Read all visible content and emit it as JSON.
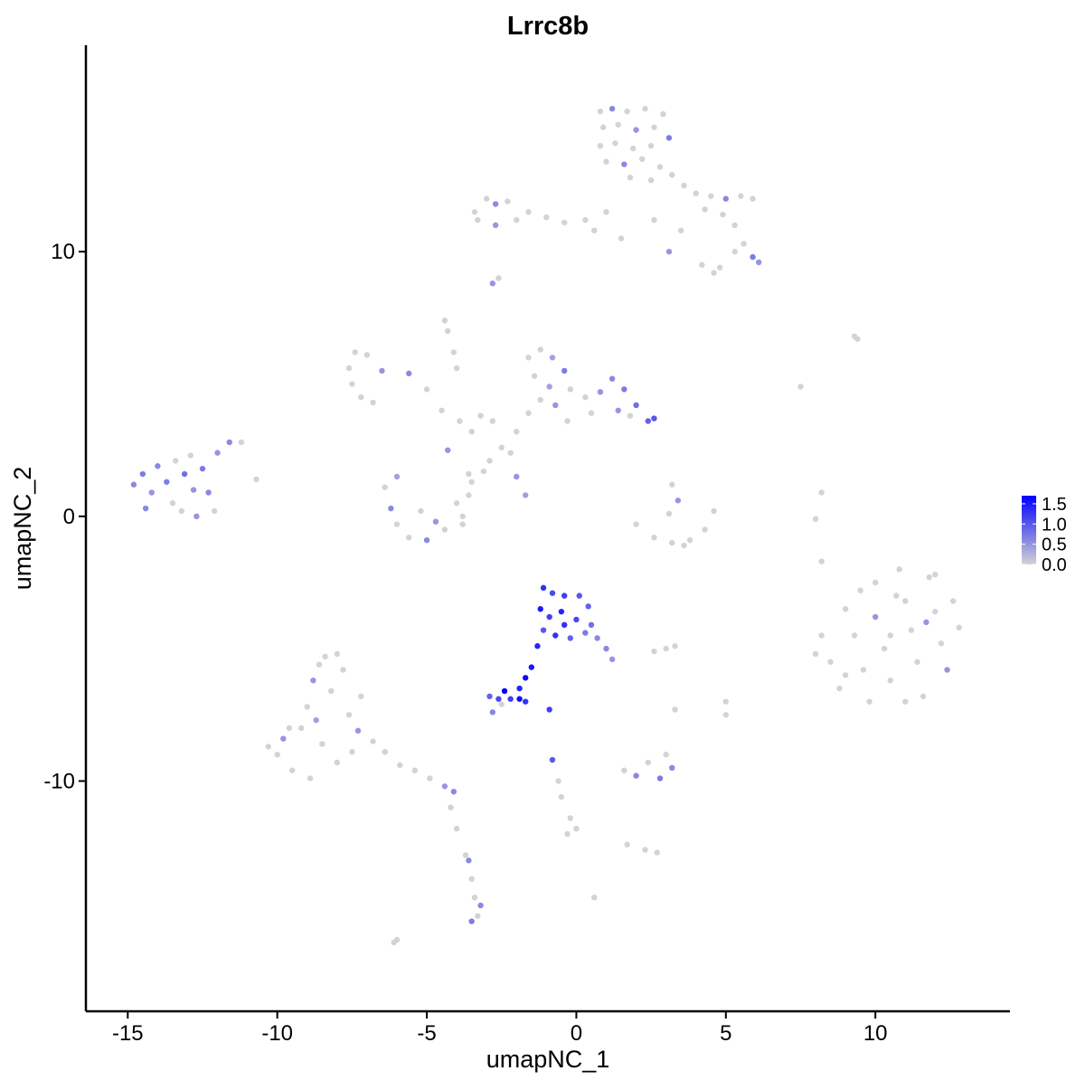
{
  "chart_data": {
    "type": "scatter",
    "title": "Lrrc8b",
    "xlabel": "umapNC_1",
    "ylabel": "umapNC_2",
    "xlim": [
      -16.4,
      14.5
    ],
    "ylim": [
      -18.7,
      17.8
    ],
    "xticks": [
      -15,
      -10,
      -5,
      0,
      5,
      10
    ],
    "yticks": [
      -10,
      0,
      10
    ],
    "grid": false,
    "colors": {
      "low": "#D3D3D3",
      "high": "#0000FF"
    },
    "legend": {
      "position": "right",
      "ticks": [
        "0.0",
        "0.5",
        "1.0",
        "1.5"
      ],
      "range": [
        0,
        1.7
      ]
    },
    "points": [
      [
        0.8,
        15.3,
        0
      ],
      [
        1.2,
        15.4,
        0.6
      ],
      [
        1.7,
        15.3,
        0
      ],
      [
        2.3,
        15.4,
        0
      ],
      [
        2.9,
        15.2,
        0
      ],
      [
        0.9,
        14.7,
        0
      ],
      [
        1.4,
        14.8,
        0
      ],
      [
        2.0,
        14.6,
        0.5
      ],
      [
        2.6,
        14.7,
        0
      ],
      [
        3.1,
        14.3,
        0.7
      ],
      [
        0.8,
        14.0,
        0
      ],
      [
        1.3,
        14.1,
        0
      ],
      [
        1.9,
        13.9,
        0
      ],
      [
        2.5,
        14.0,
        0
      ],
      [
        1.0,
        13.4,
        0
      ],
      [
        1.6,
        13.3,
        0.6
      ],
      [
        2.2,
        13.5,
        0
      ],
      [
        2.8,
        13.2,
        0
      ],
      [
        1.8,
        12.8,
        0
      ],
      [
        2.5,
        12.7,
        0
      ],
      [
        3.2,
        12.9,
        0
      ],
      [
        3.6,
        12.5,
        0
      ],
      [
        4.0,
        12.2,
        0
      ],
      [
        4.5,
        12.1,
        0
      ],
      [
        5.0,
        12.0,
        0.6
      ],
      [
        5.5,
        12.1,
        0
      ],
      [
        5.9,
        12.0,
        0
      ],
      [
        4.3,
        11.6,
        0
      ],
      [
        4.9,
        11.4,
        0
      ],
      [
        5.3,
        11.0,
        0
      ],
      [
        5.6,
        10.3,
        0
      ],
      [
        5.9,
        9.8,
        0.7
      ],
      [
        6.1,
        9.6,
        0.5
      ],
      [
        5.3,
        10.0,
        0
      ],
      [
        4.8,
        9.4,
        0
      ],
      [
        4.2,
        9.5,
        0
      ],
      [
        4.6,
        9.2,
        0
      ],
      [
        3.1,
        10.0,
        0.5
      ],
      [
        3.5,
        10.8,
        0
      ],
      [
        2.6,
        11.2,
        0
      ],
      [
        1.0,
        11.5,
        0
      ],
      [
        0.6,
        10.8,
        0
      ],
      [
        1.5,
        10.5,
        0
      ],
      [
        -3.4,
        11.5,
        0
      ],
      [
        -3.0,
        12.0,
        0
      ],
      [
        -2.7,
        11.8,
        0.6
      ],
      [
        -2.3,
        11.9,
        0
      ],
      [
        -2.0,
        11.2,
        0
      ],
      [
        -1.6,
        11.5,
        0
      ],
      [
        -1.0,
        11.3,
        0
      ],
      [
        -0.4,
        11.1,
        0
      ],
      [
        0.3,
        11.2,
        0
      ],
      [
        -2.7,
        11.0,
        0.5
      ],
      [
        -3.3,
        11.2,
        0
      ],
      [
        -2.8,
        8.8,
        0.5
      ],
      [
        -2.6,
        9.0,
        0
      ],
      [
        -4.4,
        7.4,
        0
      ],
      [
        -4.3,
        7.0,
        0
      ],
      [
        -4.1,
        6.2,
        0
      ],
      [
        -4.0,
        5.6,
        0
      ],
      [
        -7.6,
        5.6,
        0
      ],
      [
        -7.4,
        6.2,
        0
      ],
      [
        -7.0,
        6.1,
        0
      ],
      [
        -7.5,
        5.0,
        0
      ],
      [
        -7.2,
        4.5,
        0
      ],
      [
        -6.8,
        4.3,
        0
      ],
      [
        -6.5,
        5.5,
        0.5
      ],
      [
        -5.6,
        5.4,
        0.6
      ],
      [
        -5.0,
        4.8,
        0
      ],
      [
        -4.5,
        4.0,
        0
      ],
      [
        -3.9,
        3.6,
        0
      ],
      [
        -3.2,
        3.8,
        0
      ],
      [
        -2.8,
        3.6,
        0
      ],
      [
        -2.5,
        2.6,
        0
      ],
      [
        -2.2,
        2.4,
        0
      ],
      [
        -2.9,
        2.1,
        0
      ],
      [
        -4.3,
        2.5,
        0.5
      ],
      [
        -3.6,
        1.6,
        0
      ],
      [
        -3.1,
        1.7,
        0
      ],
      [
        -2.0,
        1.5,
        0.5
      ],
      [
        -1.7,
        0.8,
        0.4
      ],
      [
        -3.5,
        3.2,
        0
      ],
      [
        -1.6,
        6.0,
        0
      ],
      [
        -1.2,
        6.3,
        0
      ],
      [
        -0.8,
        6.0,
        0.4
      ],
      [
        -1.4,
        5.3,
        0
      ],
      [
        -0.9,
        4.9,
        0.4
      ],
      [
        -0.4,
        5.5,
        0.7
      ],
      [
        -0.2,
        4.8,
        0
      ],
      [
        -1.2,
        4.4,
        0
      ],
      [
        -1.6,
        3.9,
        0
      ],
      [
        -0.7,
        4.2,
        0.5
      ],
      [
        -0.3,
        3.6,
        0
      ],
      [
        0.3,
        4.5,
        0
      ],
      [
        0.8,
        4.7,
        0.5
      ],
      [
        1.2,
        5.2,
        0.6
      ],
      [
        1.6,
        4.8,
        0.7
      ],
      [
        2.0,
        4.2,
        0.8
      ],
      [
        2.4,
        3.6,
        0.9
      ],
      [
        2.6,
        3.7,
        1.0
      ],
      [
        1.4,
        4.0,
        0.5
      ],
      [
        1.8,
        3.8,
        0
      ],
      [
        0.5,
        3.9,
        0
      ],
      [
        -2.0,
        3.2,
        0
      ],
      [
        -14.8,
        1.2,
        0.6
      ],
      [
        -14.5,
        1.6,
        0.7
      ],
      [
        -14.2,
        0.9,
        0.5
      ],
      [
        -14.0,
        1.9,
        0.6
      ],
      [
        -13.7,
        1.3,
        0.7
      ],
      [
        -13.4,
        2.1,
        0
      ],
      [
        -13.1,
        1.6,
        0.8
      ],
      [
        -12.9,
        2.3,
        0
      ],
      [
        -12.8,
        1.0,
        0.5
      ],
      [
        -13.5,
        0.5,
        0
      ],
      [
        -14.4,
        0.3,
        0.6
      ],
      [
        -12.5,
        1.8,
        0.7
      ],
      [
        -12.3,
        0.9,
        0.6
      ],
      [
        -12.1,
        0.2,
        0
      ],
      [
        -12.7,
        0.0,
        0.5
      ],
      [
        -13.2,
        0.2,
        0
      ],
      [
        -11.6,
        2.8,
        0.6
      ],
      [
        -11.2,
        2.8,
        0
      ],
      [
        -12.0,
        2.4,
        0.5
      ],
      [
        -10.7,
        1.4,
        0
      ],
      [
        -6.4,
        1.1,
        0
      ],
      [
        -6.2,
        0.3,
        0.6
      ],
      [
        -6.0,
        -0.3,
        0
      ],
      [
        -5.6,
        -0.8,
        0
      ],
      [
        -5.0,
        -0.9,
        0.6
      ],
      [
        -4.4,
        -0.5,
        0
      ],
      [
        -3.8,
        0.0,
        0
      ],
      [
        -3.6,
        0.8,
        0
      ],
      [
        -4.0,
        0.5,
        0
      ],
      [
        -5.2,
        0.2,
        0
      ],
      [
        -4.7,
        -0.2,
        0.5
      ],
      [
        -3.8,
        -0.3,
        0
      ],
      [
        -6.0,
        1.5,
        0.4
      ],
      [
        -3.5,
        1.3,
        0
      ],
      [
        3.2,
        1.2,
        0
      ],
      [
        3.4,
        0.6,
        0.5
      ],
      [
        3.1,
        0.1,
        0
      ],
      [
        2.0,
        -0.3,
        0
      ],
      [
        2.6,
        -0.8,
        0
      ],
      [
        3.2,
        -1.0,
        0
      ],
      [
        3.8,
        -0.9,
        0
      ],
      [
        4.3,
        -0.5,
        0
      ],
      [
        4.6,
        0.2,
        0
      ],
      [
        3.6,
        -1.1,
        0
      ],
      [
        8.2,
        -4.5,
        0
      ],
      [
        8.5,
        -5.5,
        0
      ],
      [
        8.8,
        -6.5,
        0
      ],
      [
        9.0,
        -3.5,
        0
      ],
      [
        9.3,
        -4.5,
        0
      ],
      [
        9.6,
        -5.8,
        0
      ],
      [
        9.8,
        -7.0,
        0
      ],
      [
        10.0,
        -2.5,
        0
      ],
      [
        10.0,
        -3.8,
        0.5
      ],
      [
        10.3,
        -5.0,
        0
      ],
      [
        10.5,
        -6.2,
        0
      ],
      [
        10.8,
        -2.0,
        0
      ],
      [
        11.0,
        -3.2,
        0
      ],
      [
        11.2,
        -4.3,
        0
      ],
      [
        11.4,
        -5.5,
        0
      ],
      [
        11.6,
        -6.8,
        0
      ],
      [
        11.8,
        -2.3,
        0
      ],
      [
        12.0,
        -3.6,
        0
      ],
      [
        12.2,
        -4.8,
        0
      ],
      [
        12.4,
        -5.8,
        0.5
      ],
      [
        12.6,
        -3.2,
        0
      ],
      [
        12.8,
        -4.2,
        0
      ],
      [
        9.0,
        -6.0,
        0
      ],
      [
        10.5,
        -4.5,
        0
      ],
      [
        11.0,
        -7.0,
        0
      ],
      [
        9.5,
        -2.8,
        0
      ],
      [
        8.0,
        -5.2,
        0
      ],
      [
        12.0,
        -2.2,
        0
      ],
      [
        10.7,
        -3.0,
        0
      ],
      [
        11.7,
        -4.0,
        0.5
      ],
      [
        8.0,
        -0.1,
        0
      ],
      [
        8.2,
        0.9,
        0
      ],
      [
        9.3,
        6.8,
        0
      ],
      [
        7.5,
        4.9,
        0
      ],
      [
        9.4,
        6.7,
        0
      ],
      [
        8.2,
        -1.7,
        0
      ],
      [
        -1.1,
        -2.7,
        1.3
      ],
      [
        -0.8,
        -2.9,
        1.1
      ],
      [
        -0.4,
        -3.0,
        1.2
      ],
      [
        0.1,
        -3.0,
        1.0
      ],
      [
        0.4,
        -3.4,
        0.9
      ],
      [
        -1.2,
        -3.5,
        1.5
      ],
      [
        -0.9,
        -3.8,
        1.2
      ],
      [
        -0.5,
        -3.6,
        1.4
      ],
      [
        0.0,
        -3.9,
        1.1
      ],
      [
        0.5,
        -4.1,
        0.8
      ],
      [
        -1.1,
        -4.3,
        1.0
      ],
      [
        -0.7,
        -4.5,
        1.3
      ],
      [
        -0.2,
        -4.6,
        0.9
      ],
      [
        0.3,
        -4.4,
        0.7
      ],
      [
        0.7,
        -4.6,
        0.6
      ],
      [
        1.0,
        -5.0,
        0.6
      ],
      [
        1.2,
        -5.4,
        0.5
      ],
      [
        -0.4,
        -4.1,
        1.3
      ],
      [
        -1.3,
        -4.9,
        1.4
      ],
      [
        -1.5,
        -5.7,
        1.5
      ],
      [
        -1.7,
        -6.1,
        1.6
      ],
      [
        -1.9,
        -6.5,
        1.4
      ],
      [
        -2.9,
        -6.8,
        0.9
      ],
      [
        -2.6,
        -6.9,
        1.1
      ],
      [
        -2.4,
        -6.6,
        1.7
      ],
      [
        -2.2,
        -6.9,
        1.2
      ],
      [
        -1.9,
        -6.9,
        1.6
      ],
      [
        -1.7,
        -7.0,
        1.3
      ],
      [
        -2.8,
        -7.4,
        0.6
      ],
      [
        -2.5,
        -7.1,
        0
      ],
      [
        -0.9,
        -7.3,
        1.2
      ],
      [
        -0.8,
        -9.2,
        1.0
      ],
      [
        -0.6,
        -10.0,
        0
      ],
      [
        -0.5,
        -10.6,
        0
      ],
      [
        -0.2,
        -11.4,
        0
      ],
      [
        0.0,
        -11.8,
        0
      ],
      [
        -0.3,
        -12.0,
        0
      ],
      [
        1.6,
        -9.6,
        0
      ],
      [
        2.0,
        -9.8,
        0.6
      ],
      [
        2.4,
        -9.3,
        0
      ],
      [
        2.8,
        -9.9,
        0.7
      ],
      [
        3.2,
        -9.5,
        0.6
      ],
      [
        3.0,
        -9.0,
        0
      ],
      [
        2.3,
        -12.6,
        0
      ],
      [
        1.7,
        -12.4,
        0
      ],
      [
        2.7,
        -12.7,
        0
      ],
      [
        0.6,
        -14.4,
        0
      ],
      [
        3.0,
        -5.0,
        0
      ],
      [
        2.6,
        -5.1,
        0
      ],
      [
        3.3,
        -4.9,
        0
      ],
      [
        5.0,
        -7.0,
        0
      ],
      [
        5.0,
        -7.5,
        0
      ],
      [
        3.3,
        -7.3,
        0
      ],
      [
        -10.3,
        -8.7,
        0
      ],
      [
        -10.0,
        -9.0,
        0
      ],
      [
        -9.8,
        -8.4,
        0.5
      ],
      [
        -9.5,
        -9.6,
        0
      ],
      [
        -9.2,
        -8.0,
        0
      ],
      [
        -9.0,
        -7.2,
        0
      ],
      [
        -8.8,
        -6.2,
        0.5
      ],
      [
        -8.6,
        -5.6,
        0
      ],
      [
        -8.4,
        -5.3,
        0
      ],
      [
        -8.0,
        -5.2,
        0
      ],
      [
        -7.8,
        -5.8,
        0
      ],
      [
        -8.2,
        -6.6,
        0
      ],
      [
        -8.7,
        -7.7,
        0.4
      ],
      [
        -8.5,
        -8.6,
        0
      ],
      [
        -8.0,
        -9.3,
        0
      ],
      [
        -7.5,
        -8.9,
        0
      ],
      [
        -7.6,
        -7.5,
        0
      ],
      [
        -7.2,
        -6.8,
        0
      ],
      [
        -7.3,
        -8.1,
        0.5
      ],
      [
        -6.8,
        -8.5,
        0
      ],
      [
        -6.4,
        -8.9,
        0
      ],
      [
        -5.9,
        -9.4,
        0
      ],
      [
        -5.4,
        -9.6,
        0
      ],
      [
        -4.9,
        -9.9,
        0
      ],
      [
        -4.4,
        -10.2,
        0.5
      ],
      [
        -4.1,
        -10.4,
        0.6
      ],
      [
        -9.6,
        -8.0,
        0
      ],
      [
        -8.9,
        -9.9,
        0
      ],
      [
        -4.2,
        -11.0,
        0
      ],
      [
        -4.0,
        -11.8,
        0
      ],
      [
        -3.7,
        -12.8,
        0
      ],
      [
        -3.6,
        -13.0,
        0.6
      ],
      [
        -3.5,
        -13.7,
        0
      ],
      [
        -3.4,
        -14.4,
        0
      ],
      [
        -3.2,
        -14.7,
        0.6
      ],
      [
        -3.5,
        -15.3,
        0.7
      ],
      [
        -3.3,
        -15.1,
        0
      ],
      [
        -6.0,
        -16.0,
        0
      ],
      [
        -6.1,
        -16.1,
        0
      ]
    ]
  }
}
